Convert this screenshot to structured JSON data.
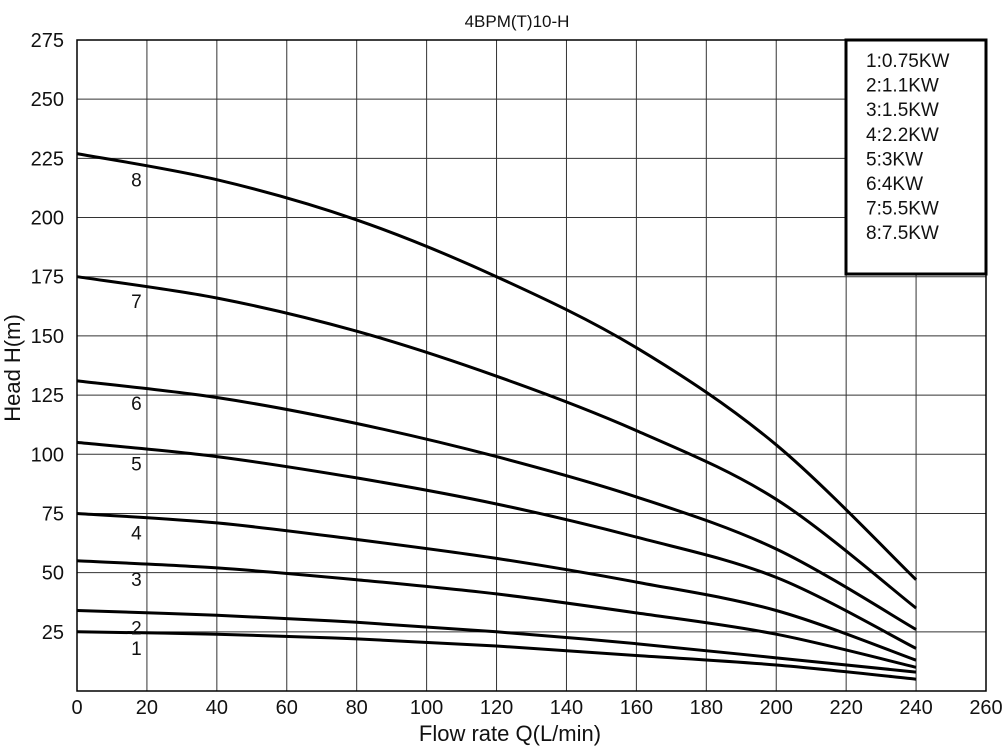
{
  "chart_data": {
    "type": "line",
    "title": "4BPM(T)10-H",
    "xlabel": "Flow rate Q(L/min)",
    "ylabel": "Head H(m)",
    "xlim": [
      0,
      260
    ],
    "ylim": [
      0,
      275
    ],
    "xticks": [
      "0",
      "20",
      "40",
      "60",
      "80",
      "100",
      "120",
      "140",
      "160",
      "180",
      "200",
      "220",
      "240",
      "260"
    ],
    "yticks": [
      "25",
      "50",
      "75",
      "100",
      "125",
      "150",
      "175",
      "200",
      "225",
      "250",
      "275"
    ],
    "grid": true,
    "legend_position": "top-right",
    "x": [
      0,
      40,
      80,
      120,
      160,
      200,
      240
    ],
    "series": [
      {
        "label": "1",
        "name": "1:0.75KW",
        "values": [
          25,
          24,
          22,
          19,
          15,
          11,
          5
        ]
      },
      {
        "label": "2",
        "name": "2:1.1KW",
        "values": [
          34,
          32,
          29,
          25,
          20,
          14,
          8
        ]
      },
      {
        "label": "3",
        "name": "3:1.5KW",
        "values": [
          55,
          52,
          47,
          41,
          33,
          24,
          10
        ]
      },
      {
        "label": "4",
        "name": "4:2.2KW",
        "values": [
          75,
          71,
          64,
          56,
          46,
          34,
          13
        ]
      },
      {
        "label": "5",
        "name": "5:3KW",
        "values": [
          105,
          99,
          90,
          79,
          65,
          48,
          18
        ]
      },
      {
        "label": "6",
        "name": "6:4KW",
        "values": [
          131,
          124,
          113,
          99,
          82,
          60,
          26
        ]
      },
      {
        "label": "7",
        "name": "7:5.5KW",
        "values": [
          175,
          166,
          152,
          133,
          110,
          81,
          35
        ]
      },
      {
        "label": "8",
        "name": "8:7.5KW",
        "values": [
          227,
          216,
          199,
          175,
          145,
          104,
          47
        ]
      }
    ]
  }
}
